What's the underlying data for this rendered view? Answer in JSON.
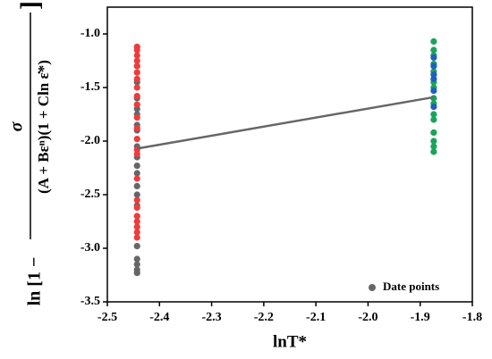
{
  "chart_data": {
    "type": "scatter",
    "xlabel": "lnT*",
    "ylabel": {
      "prefix": "ln [1 −",
      "numerator": "σ",
      "denominator": "(A + Bεⁿ)(1 + Cln ε̇*)",
      "suffix": "]"
    },
    "xlim": [
      -2.5,
      -1.8
    ],
    "xticks": [
      -2.5,
      -2.4,
      -2.3,
      -2.2,
      -2.1,
      {
        "value": -2.0,
        "label": "-2.0"
      },
      -1.9,
      -1.8
    ],
    "ylim": [
      -3.5,
      -0.75
    ],
    "yticks": [
      -3.5,
      {
        "value": -3.0,
        "label": "-3.0"
      },
      -2.5,
      {
        "value": -2.0,
        "label": "-2.0"
      },
      -1.5,
      {
        "value": -1.0,
        "label": "-1.0"
      }
    ],
    "legend": "lower right",
    "series": [
      {
        "name": "Date points",
        "color": "#666666",
        "x": [
          -2.443,
          -2.443,
          -2.443,
          -2.443,
          -2.443,
          -2.443,
          -2.443,
          -2.443,
          -2.443,
          -2.443,
          -2.443,
          -2.443,
          -2.443,
          -2.443,
          -2.443,
          -2.443,
          -2.443,
          -2.443,
          -2.443,
          -2.443
        ],
        "values": [
          -3.23,
          -3.2,
          -3.15,
          -3.1,
          -2.98,
          -2.7,
          -2.6,
          -2.5,
          -2.42,
          -2.3,
          -2.23,
          -2.15,
          -2.05,
          -1.9,
          -1.85,
          -1.75,
          -1.7,
          -1.6,
          -1.45,
          -1.3
        ]
      },
      {
        "color": "#ee3b3b",
        "x": [
          -2.443,
          -2.443,
          -2.443,
          -2.443,
          -2.443,
          -2.443,
          -2.443,
          -2.443,
          -2.443,
          -2.443,
          -2.443,
          -2.443,
          -2.443,
          -2.443,
          -2.443,
          -2.443,
          -2.443,
          -2.443,
          -2.443,
          -2.443,
          -2.443,
          -2.443,
          -2.443
        ],
        "values": [
          -2.9,
          -2.85,
          -2.8,
          -2.75,
          -2.7,
          -2.62,
          -2.55,
          -2.35,
          -2.12,
          -2.08,
          -1.98,
          -1.88,
          -1.78,
          -1.66,
          -1.58,
          -1.5,
          -1.42,
          -1.36,
          -1.3,
          -1.25,
          -1.2,
          -1.15,
          -1.12
        ]
      },
      {
        "color": "#1aa35a",
        "x": [
          -1.874,
          -1.874,
          -1.874,
          -1.874,
          -1.874,
          -1.874,
          -1.874,
          -1.874,
          -1.874,
          -1.874,
          -1.874,
          -1.874,
          -1.874,
          -1.874,
          -1.874
        ],
        "values": [
          -1.07,
          -1.15,
          -1.2,
          -1.28,
          -1.35,
          -1.45,
          -1.5,
          -1.6,
          -1.65,
          -1.75,
          -1.8,
          -1.92,
          -2.0,
          -2.05,
          -2.1
        ]
      },
      {
        "color": "#1f5fbf",
        "x": [
          -1.874,
          -1.874,
          -1.874,
          -1.874,
          -1.874,
          -1.874
        ],
        "values": [
          -1.22,
          -1.3,
          -1.38,
          -1.42,
          -1.53,
          -1.68
        ]
      },
      {
        "type": "line",
        "color": "#666666",
        "x": [
          -2.443,
          -1.874
        ],
        "values": [
          -2.07,
          -1.59
        ]
      }
    ]
  }
}
